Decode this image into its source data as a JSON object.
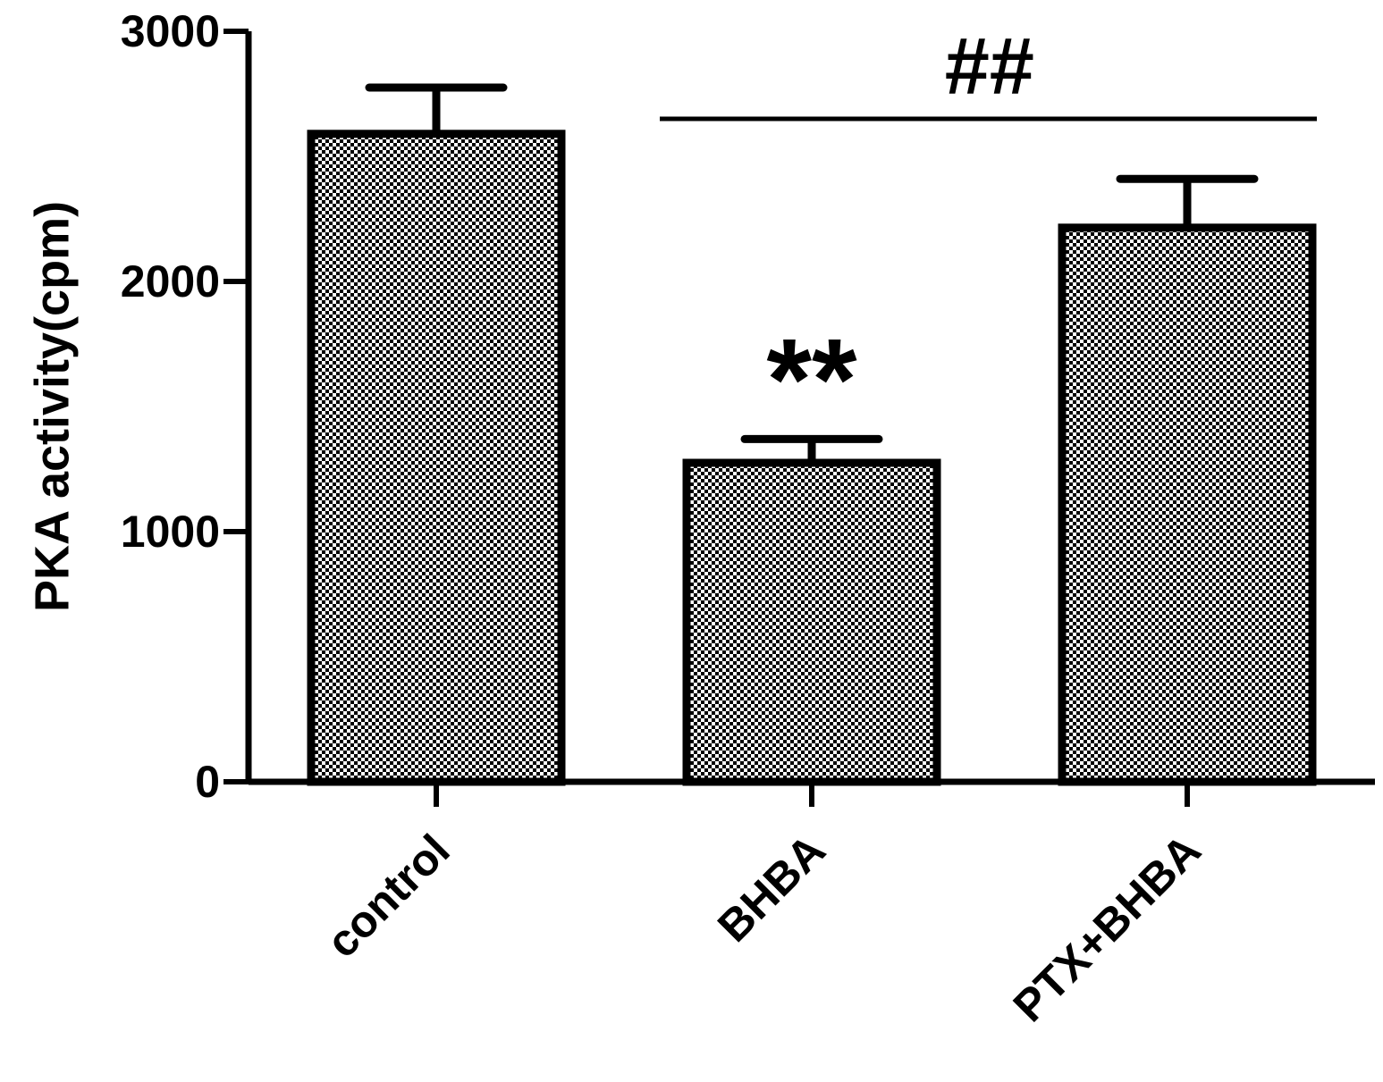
{
  "chart_data": {
    "type": "bar",
    "ylabel": "PKA activity(cpm)",
    "categories": [
      "control",
      "BHBA",
      "PTX+BHBA"
    ],
    "values": [
      2590,
      1275,
      2215
    ],
    "errors": [
      185,
      95,
      195
    ],
    "color": "#000000",
    "ylim": [
      0,
      3000
    ],
    "yticks": [
      0,
      1000,
      2000,
      3000
    ],
    "annotations": {
      "significance": "**",
      "comparison": "##"
    }
  }
}
